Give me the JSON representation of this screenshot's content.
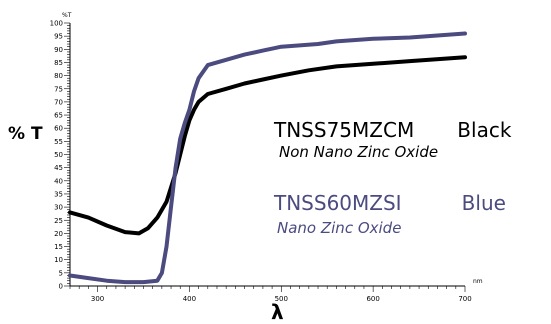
{
  "chart_data": {
    "type": "line",
    "xlabel": "λ",
    "ylabel": "% T",
    "x_unit": "nm",
    "y_unit": "%T",
    "xlim": [
      270,
      700
    ],
    "ylim": [
      0,
      100
    ],
    "x_ticks": [
      300,
      400,
      500,
      600,
      700
    ],
    "y_ticks": [
      0,
      5,
      10,
      15,
      20,
      25,
      30,
      35,
      40,
      45,
      50,
      55,
      60,
      65,
      70,
      75,
      80,
      85,
      90,
      95,
      100
    ],
    "grid": false,
    "series": [
      {
        "name": "TNSS75MZCM",
        "color_label": "Black",
        "description": "Non Nano Zinc Oxide",
        "color": "#000000",
        "x": [
          270,
          290,
          310,
          330,
          345,
          355,
          365,
          375,
          385,
          395,
          400,
          405,
          410,
          420,
          440,
          460,
          480,
          500,
          530,
          560,
          600,
          640,
          700
        ],
        "y": [
          28,
          26,
          23,
          20.5,
          20,
          22,
          26,
          32,
          43,
          57,
          63,
          67,
          70,
          73,
          75,
          77,
          78.5,
          80,
          82,
          83.5,
          84.5,
          85.5,
          87
        ]
      },
      {
        "name": "TNSS60MZSI",
        "color_label": "Blue",
        "description": "Nano Zinc Oxide",
        "color": "#4b4b80",
        "x": [
          270,
          290,
          310,
          330,
          350,
          365,
          370,
          375,
          380,
          385,
          390,
          395,
          400,
          405,
          410,
          420,
          440,
          460,
          480,
          500,
          540,
          560,
          600,
          640,
          700
        ],
        "y": [
          4,
          3,
          2,
          1.5,
          1.5,
          2,
          5,
          15,
          30,
          45,
          56,
          62,
          67,
          74,
          79,
          84,
          86,
          88,
          89.5,
          91,
          92,
          93,
          94,
          94.5,
          96
        ]
      }
    ]
  }
}
